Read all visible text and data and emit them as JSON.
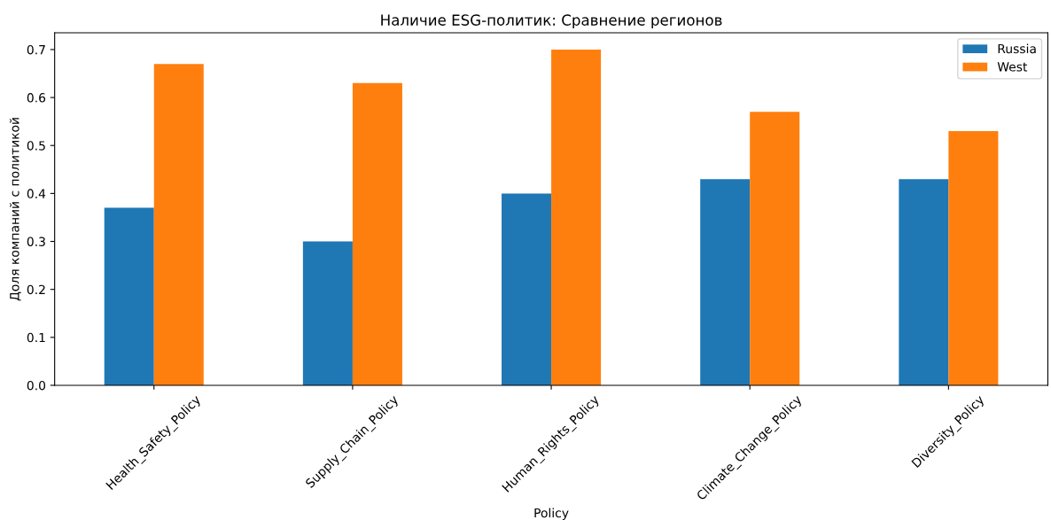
{
  "chart_data": {
    "type": "bar",
    "title": "Наличие ESG-политик: Сравнение регионов",
    "xlabel": "Policy",
    "ylabel": "Доля компаний с политикой",
    "categories": [
      "Health_Safety_Policy",
      "Supply_Chain_Policy",
      "Human_Rights_Policy",
      "Climate_Change_Policy",
      "Diversity_Policy"
    ],
    "series": [
      {
        "name": "Russia",
        "color": "#1f77b4",
        "values": [
          0.37,
          0.3,
          0.4,
          0.43,
          0.43
        ]
      },
      {
        "name": "West",
        "color": "#ff7f0e",
        "values": [
          0.67,
          0.63,
          0.7,
          0.57,
          0.53
        ]
      }
    ],
    "ylim": [
      0,
      0.735
    ],
    "yticks": [
      {
        "value": 0,
        "label": "0.0"
      },
      0.1,
      0.2,
      0.3,
      0.4,
      0.5,
      0.6,
      0.7
    ],
    "grid": false,
    "legend": "top right"
  }
}
